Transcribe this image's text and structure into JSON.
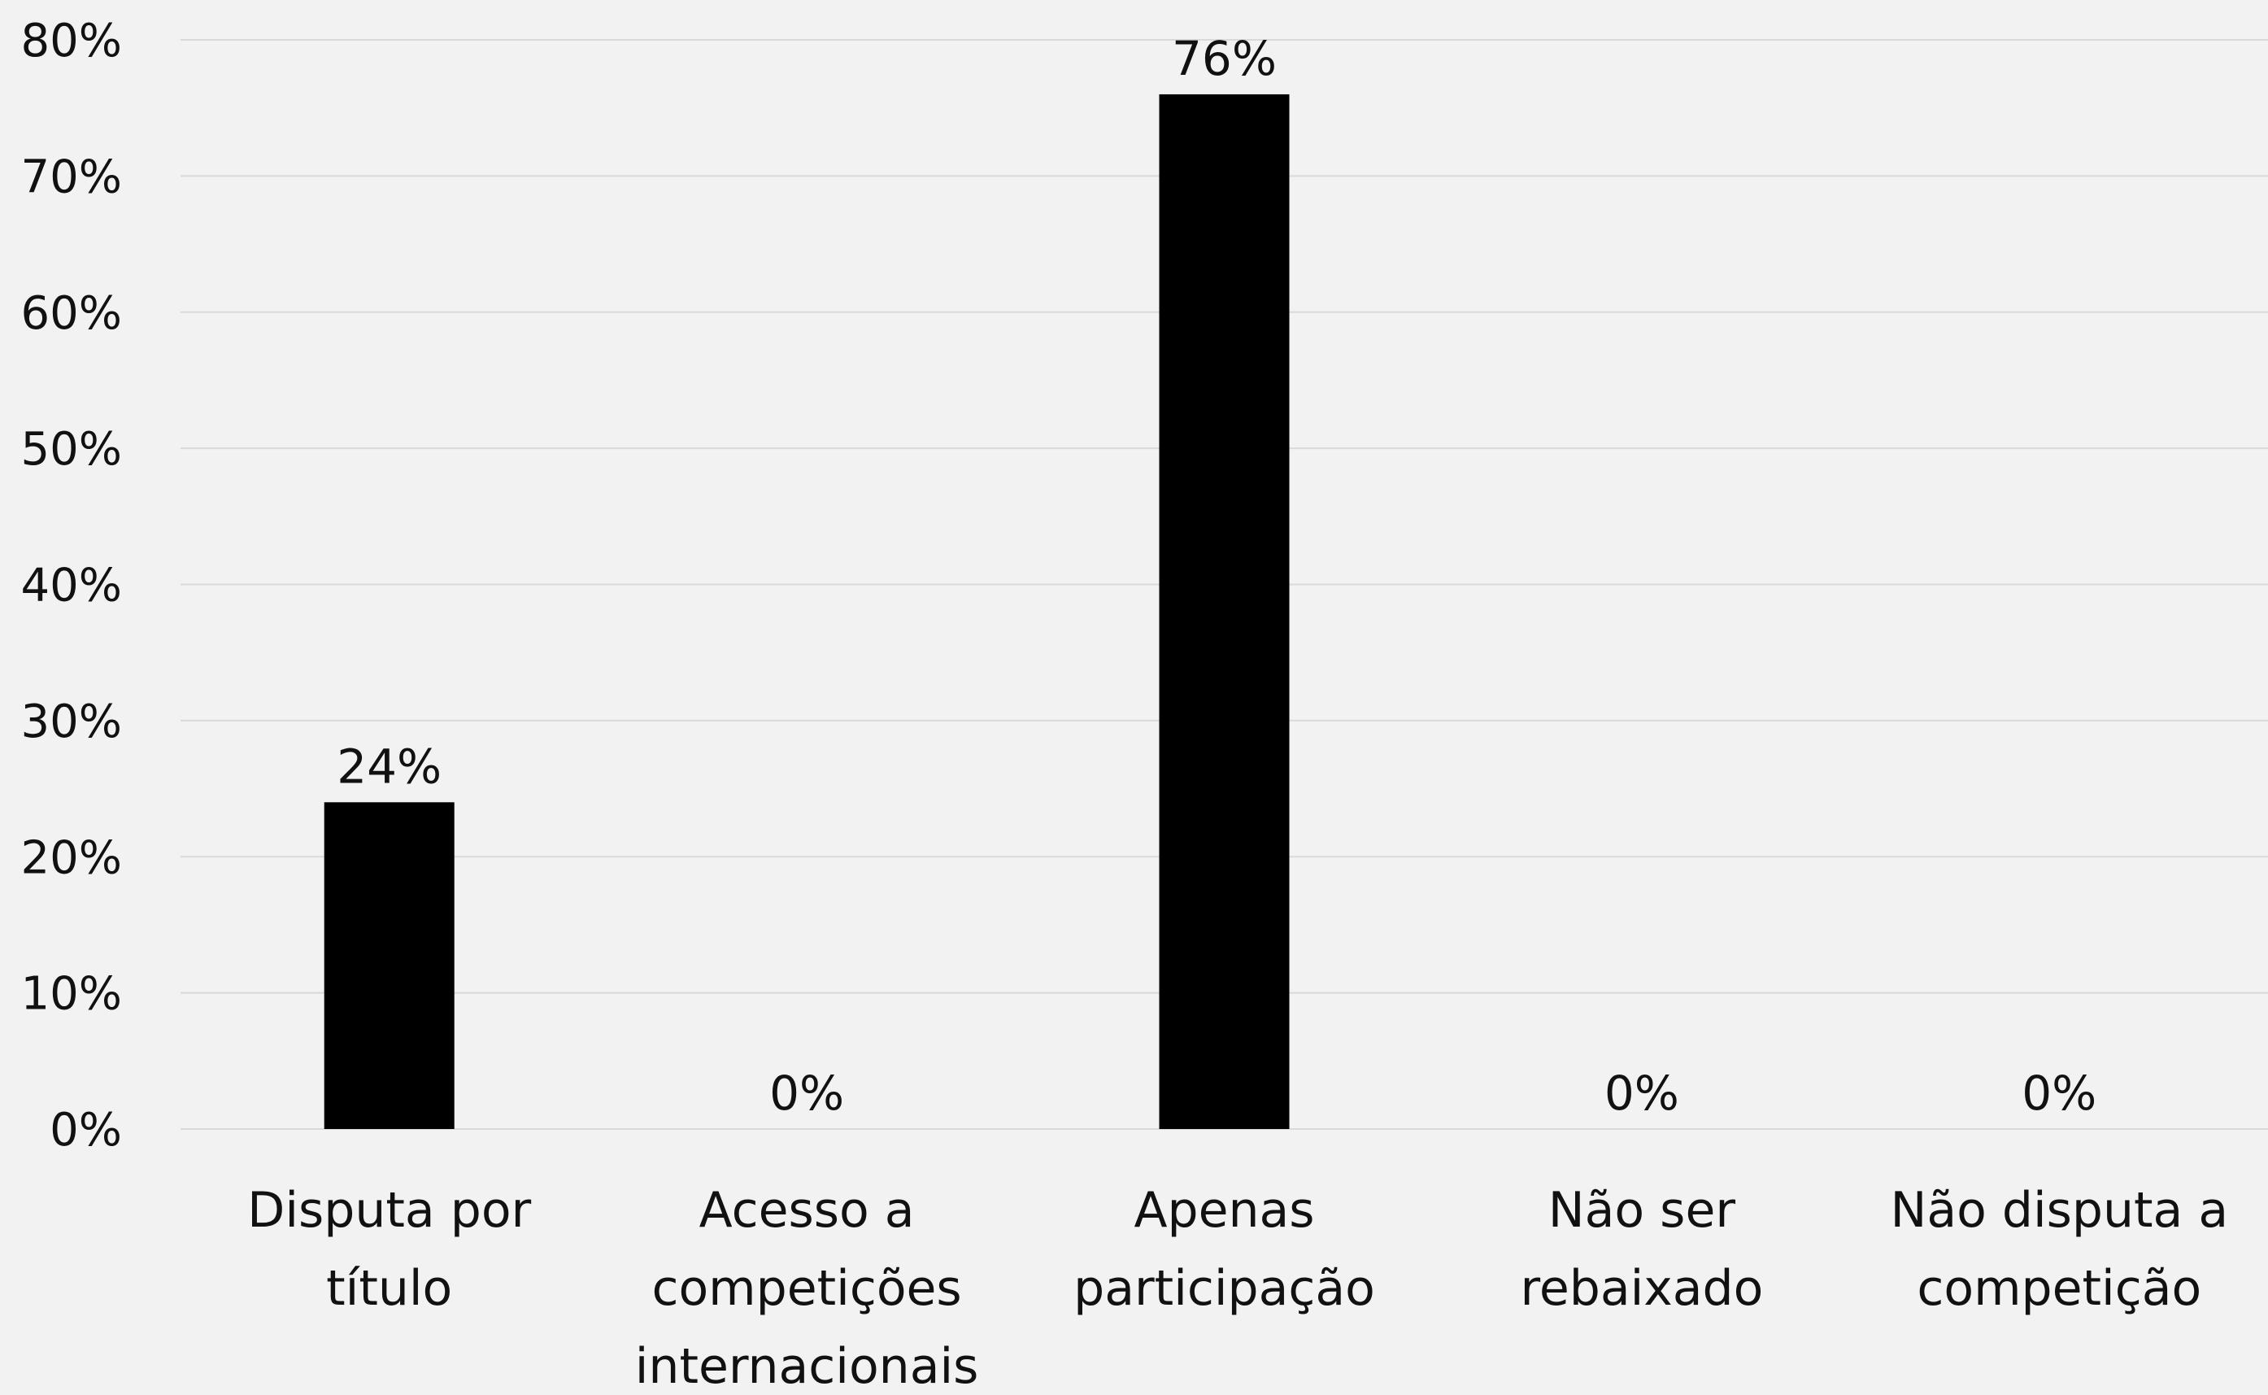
{
  "chart_data": {
    "type": "bar",
    "categories": [
      [
        "Disputa por",
        "título"
      ],
      [
        "Acesso a",
        "competições",
        "internacionais"
      ],
      [
        "Apenas",
        "participação"
      ],
      [
        "Não ser",
        "rebaixado"
      ],
      [
        "Não disputa a",
        "competição"
      ]
    ],
    "values": [
      24,
      0,
      76,
      0,
      0
    ],
    "data_labels": [
      "24%",
      "0%",
      "76%",
      "0%",
      "0%"
    ],
    "title": "",
    "xlabel": "",
    "ylabel": "",
    "ylim": [
      0,
      80
    ],
    "yticks": [
      0,
      10,
      20,
      30,
      40,
      50,
      60,
      70,
      80
    ],
    "ytick_labels": [
      "0%",
      "10%",
      "20%",
      "30%",
      "40%",
      "50%",
      "60%",
      "70%",
      "80%"
    ],
    "grid": true,
    "legend": "none",
    "colors": {
      "bar": "#000000",
      "background": "#f2f2f2",
      "grid": "#d9d9d9",
      "text": "#111111"
    }
  }
}
